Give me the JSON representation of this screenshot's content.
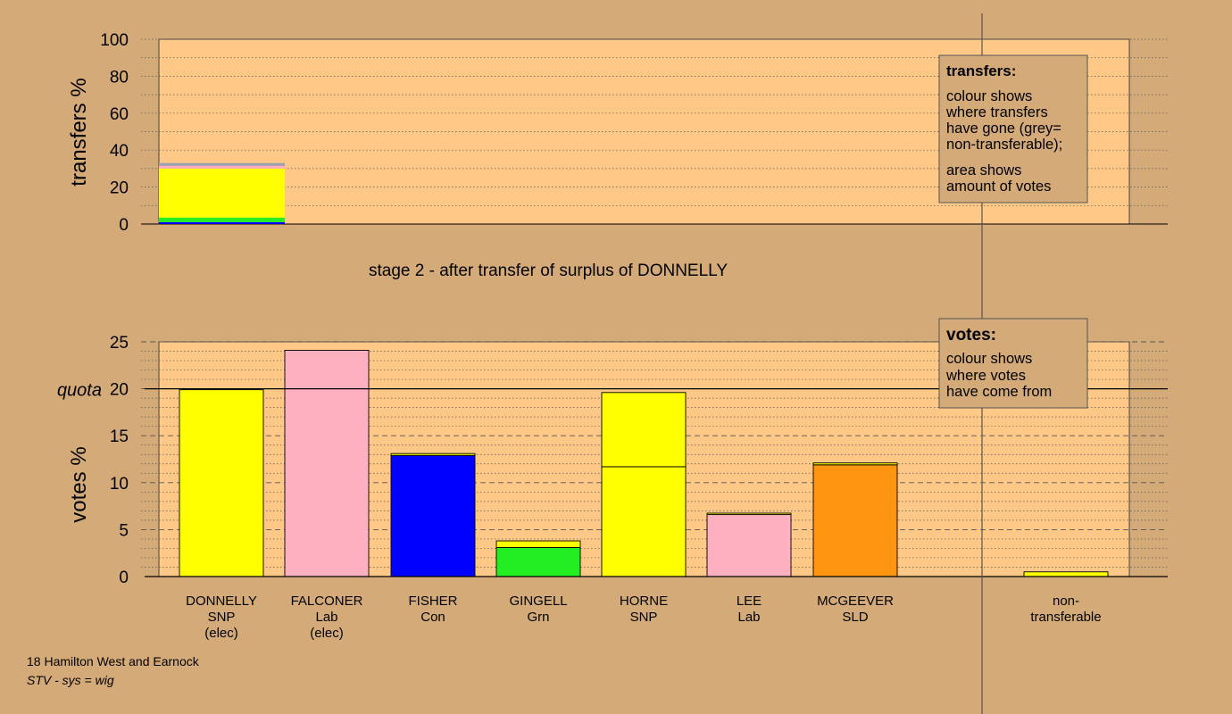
{
  "chart_data": [
    {
      "type": "bar",
      "ylabel": "transfers %",
      "ylim": [
        0,
        100
      ],
      "yticks": [
        0,
        20,
        40,
        60,
        80,
        100
      ],
      "grid": true,
      "categories": [
        "DONNELLY"
      ],
      "stack": [
        {
          "name": "Con",
          "color": "#0000ff",
          "value": 1.0
        },
        {
          "name": "Grn",
          "color": "#22ee22",
          "value": 2.5
        },
        {
          "name": "SNP",
          "color": "#ffff00",
          "value": 26.5
        },
        {
          "name": "Lab",
          "color": "#ffb0c0",
          "value": 1.5
        },
        {
          "name": "non-transferable",
          "color": "#9aa0b0",
          "value": 1.5
        }
      ]
    },
    {
      "type": "bar",
      "ylabel": "votes %",
      "ylim": [
        0,
        25
      ],
      "yticks": [
        0,
        5,
        10,
        15,
        20,
        25
      ],
      "quota": 20,
      "quota_label": "quota",
      "grid": true,
      "categories": [
        {
          "name": "DONNELLY",
          "party": "SNP",
          "status": "(elec)"
        },
        {
          "name": "FALCONER",
          "party": "Lab",
          "status": "(elec)"
        },
        {
          "name": "FISHER",
          "party": "Con",
          "status": ""
        },
        {
          "name": "GINGELL",
          "party": "Grn",
          "status": ""
        },
        {
          "name": "HORNE",
          "party": "SNP",
          "status": ""
        },
        {
          "name": "LEE",
          "party": "Lab",
          "status": ""
        },
        {
          "name": "MCGEEVER",
          "party": "SLD",
          "status": ""
        },
        {
          "name": "non-",
          "party": "transferable",
          "status": ""
        }
      ],
      "segments": [
        [
          {
            "color": "#ffff00",
            "value": 19.9
          }
        ],
        [
          {
            "color": "#ffb0c0",
            "value": 24.1
          }
        ],
        [
          {
            "color": "#0000ff",
            "value": 12.9
          },
          {
            "color": "#ffff00",
            "value": 0.2
          }
        ],
        [
          {
            "color": "#22ee22",
            "value": 3.1
          },
          {
            "color": "#ffff00",
            "value": 0.7
          }
        ],
        [
          {
            "color": "#ffff00",
            "value": 11.7
          },
          {
            "color": "#ffff00",
            "value": 7.9
          }
        ],
        [
          {
            "color": "#ffb0c0",
            "value": 6.6
          },
          {
            "color": "#ffff00",
            "value": 0.15
          }
        ],
        [
          {
            "color": "#ff9410",
            "value": 11.9
          },
          {
            "color": "#ffff00",
            "value": 0.2
          }
        ],
        [
          {
            "color": "#ffff00",
            "value": 0.5
          }
        ]
      ]
    }
  ],
  "stage_text": "stage 2 - after transfer of surplus of DONNELLY",
  "transfers_box": {
    "title": "transfers:",
    "lines1": [
      "colour shows",
      "where transfers",
      "have gone (grey=",
      "non-transferable);"
    ],
    "lines2": [
      "area shows",
      "amount of votes"
    ]
  },
  "votes_box": {
    "title": "votes:",
    "lines": [
      "colour shows",
      "where votes",
      "have come from"
    ]
  },
  "footer": {
    "line1": "18 Hamilton West and Earnock",
    "line2": "STV - sys = wig"
  },
  "colors": {
    "background": "#d4aa78",
    "plot_area": "#ffc887"
  }
}
